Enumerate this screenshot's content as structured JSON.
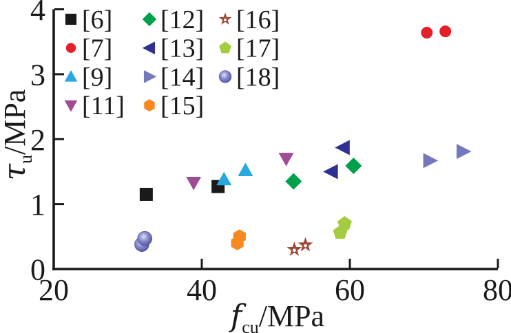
{
  "figure": {
    "background": "#ffffff",
    "ink_color": "#1a1a1a"
  },
  "chart_data": {
    "type": "scatter",
    "title": "",
    "xlabel": {
      "symbol": "f",
      "subscript": "cu",
      "unit": "/MPa"
    },
    "ylabel": {
      "symbol": "τ",
      "subscript": "u",
      "unit": "/MPa"
    },
    "xlim": [
      20,
      80
    ],
    "ylim": [
      0,
      4
    ],
    "x_ticks": [
      20,
      40,
      60,
      80
    ],
    "y_ticks": [
      0,
      1,
      2,
      3,
      4
    ],
    "grid": false,
    "legend_position": "upper-left",
    "series": [
      {
        "name": "[6]",
        "marker": "square",
        "color": "#1a1a1a",
        "points": [
          [
            32.5,
            1.15
          ],
          [
            42.2,
            1.27
          ]
        ]
      },
      {
        "name": "[7]",
        "marker": "circle",
        "color": "#e3212a",
        "points": [
          [
            70.4,
            3.64
          ],
          [
            72.9,
            3.66
          ]
        ]
      },
      {
        "name": "[9]",
        "marker": "triangle-up",
        "color": "#29a8e0",
        "points": [
          [
            43.0,
            1.38
          ],
          [
            45.9,
            1.52
          ]
        ]
      },
      {
        "name": "[11]",
        "marker": "triangle-down",
        "color": "#a04b93",
        "points": [
          [
            38.9,
            1.33
          ],
          [
            51.4,
            1.7
          ]
        ]
      },
      {
        "name": "[12]",
        "marker": "diamond",
        "color": "#00a14b",
        "points": [
          [
            52.4,
            1.35
          ],
          [
            60.5,
            1.59
          ]
        ]
      },
      {
        "name": "[13]",
        "marker": "triangle-left",
        "color": "#2e3192",
        "points": [
          [
            57.5,
            1.5
          ],
          [
            59.1,
            1.87
          ]
        ]
      },
      {
        "name": "[14]",
        "marker": "triangle-right",
        "color": "#7478bd",
        "points": [
          [
            70.8,
            1.67
          ],
          [
            75.3,
            1.81
          ]
        ]
      },
      {
        "name": "[15]",
        "marker": "hexagon",
        "color": "#f6891f",
        "points": [
          [
            44.8,
            0.4
          ],
          [
            45.1,
            0.5
          ]
        ]
      },
      {
        "name": "[16]",
        "marker": "star-open",
        "color": "#9e4936",
        "points": [
          [
            52.5,
            0.3
          ],
          [
            54.0,
            0.37
          ]
        ]
      },
      {
        "name": "[17]",
        "marker": "pentagon",
        "color": "#a5cc40",
        "points": [
          [
            58.7,
            0.56
          ],
          [
            59.3,
            0.7
          ]
        ]
      },
      {
        "name": "[18]",
        "marker": "sphere",
        "color": "#7c81c7",
        "points": [
          [
            31.9,
            0.38
          ],
          [
            32.3,
            0.47
          ]
        ]
      }
    ],
    "legend_columns": [
      [
        "[6]",
        "[7]",
        "[9]",
        "[11]"
      ],
      [
        "[12]",
        "[13]",
        "[14]",
        "[15]"
      ],
      [
        "[16]",
        "[17]",
        "[18]"
      ]
    ]
  }
}
